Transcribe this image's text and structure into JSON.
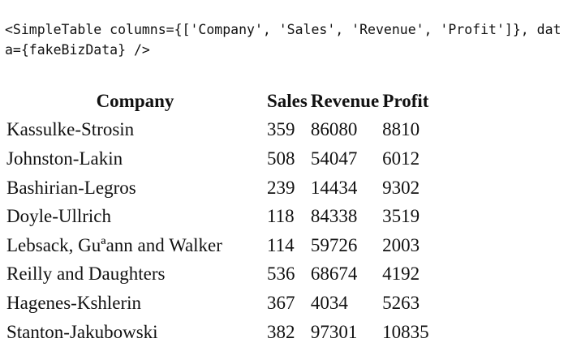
{
  "code_snippet": "<SimpleTable columns={['Company', 'Sales', 'Revenue', 'Profit']}, data={fakeBizData} />",
  "table": {
    "columns": [
      "Company",
      "Sales",
      "Revenue",
      "Profit"
    ],
    "rows": [
      [
        "Kassulke-Strosin",
        "359",
        "86080",
        "8810"
      ],
      [
        "Johnston-Lakin",
        "508",
        "54047",
        "6012"
      ],
      [
        "Bashirian-Legros",
        "239",
        "14434",
        "9302"
      ],
      [
        "Doyle-Ullrich",
        "118",
        "84338",
        "3519"
      ],
      [
        "Lebsack, Guªann and Walker",
        "114",
        "59726",
        "2003"
      ],
      [
        "Reilly and Daughters",
        "536",
        "68674",
        "4192"
      ],
      [
        "Hagenes-Kshlerin",
        "367",
        "4034",
        "5263"
      ],
      [
        "Stanton-Jakubowski",
        "382",
        "97301",
        "10835"
      ]
    ]
  }
}
